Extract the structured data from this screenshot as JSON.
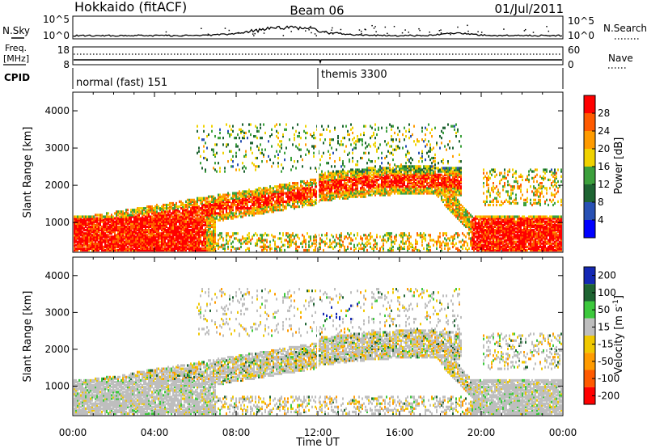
{
  "header": {
    "station": "Hokkaido (fitACF)",
    "beam": "Beam 06",
    "date": "01/Jul/2011"
  },
  "strip_labels": {
    "nsky": "N.Sky",
    "nsearch": "N.Search",
    "freq": "Freq.",
    "freq_unit": "[MHz]",
    "nave": "Nave",
    "cpid": "CPID"
  },
  "strip_ticks": {
    "nsky_left": [
      "10^5",
      "10^0"
    ],
    "nsky_right": [
      "10^5",
      "10^0"
    ],
    "freq_left": [
      "18",
      "8"
    ],
    "nave_right": [
      "60",
      "0"
    ]
  },
  "cpid_modes": [
    {
      "label": "normal (fast) 151",
      "start_hour": 0
    },
    {
      "label": "themis 3300",
      "start_hour": 12
    }
  ],
  "colorbars": {
    "power": {
      "label": "Power [dB]",
      "ticks": [
        "28",
        "24",
        "20",
        "16",
        "12",
        "8",
        "4"
      ],
      "colors": [
        "#ff0000",
        "#ff5a00",
        "#ff9b00",
        "#f0d200",
        "#3ca03c",
        "#1e6432",
        "#2850b4",
        "#0000ff"
      ]
    },
    "velocity": {
      "label": "Velocity [m s",
      "label_sup": "-1",
      "label_end": "]",
      "ticks": [
        "200",
        "100",
        "50",
        "15",
        "-15",
        "-50",
        "-100",
        "-200"
      ],
      "colors": [
        "#1428b4",
        "#1e6432",
        "#3cc83c",
        "#bebebe",
        "#f0c800",
        "#ff9b00",
        "#ff5a00",
        "#ff0000"
      ]
    }
  },
  "chart_data": [
    {
      "type": "heatmap",
      "panel": "power",
      "ylabel": "Slant Range [km]",
      "ylim": [
        200,
        4500
      ],
      "yticks": [
        "4000",
        "3000",
        "2000",
        "1000"
      ],
      "xlim_hours": [
        0,
        24
      ],
      "echo_bands": [
        {
          "hours": [
            0,
            7
          ],
          "range_km": [
            250,
            1100
          ],
          "power_db": 26
        },
        {
          "hours": [
            7,
            12
          ],
          "range_km": [
            900,
            1600
          ],
          "power_db": 24
        },
        {
          "hours": [
            12,
            18
          ],
          "range_km": [
            1300,
            2300
          ],
          "power_db": 26
        },
        {
          "hours": [
            20,
            24
          ],
          "range_km": [
            250,
            1200
          ],
          "power_db": 28
        }
      ]
    },
    {
      "type": "heatmap",
      "panel": "velocity",
      "ylabel": "Slant Range [km]",
      "ylim": [
        200,
        4500
      ],
      "yticks": [
        "4000",
        "3000",
        "2000",
        "1000"
      ],
      "xlim_hours": [
        0,
        24
      ],
      "xlabel": "Time UT",
      "xticks": [
        "00:00",
        "04:00",
        "08:00",
        "12:00",
        "16:00",
        "20:00",
        "00:00"
      ]
    }
  ]
}
